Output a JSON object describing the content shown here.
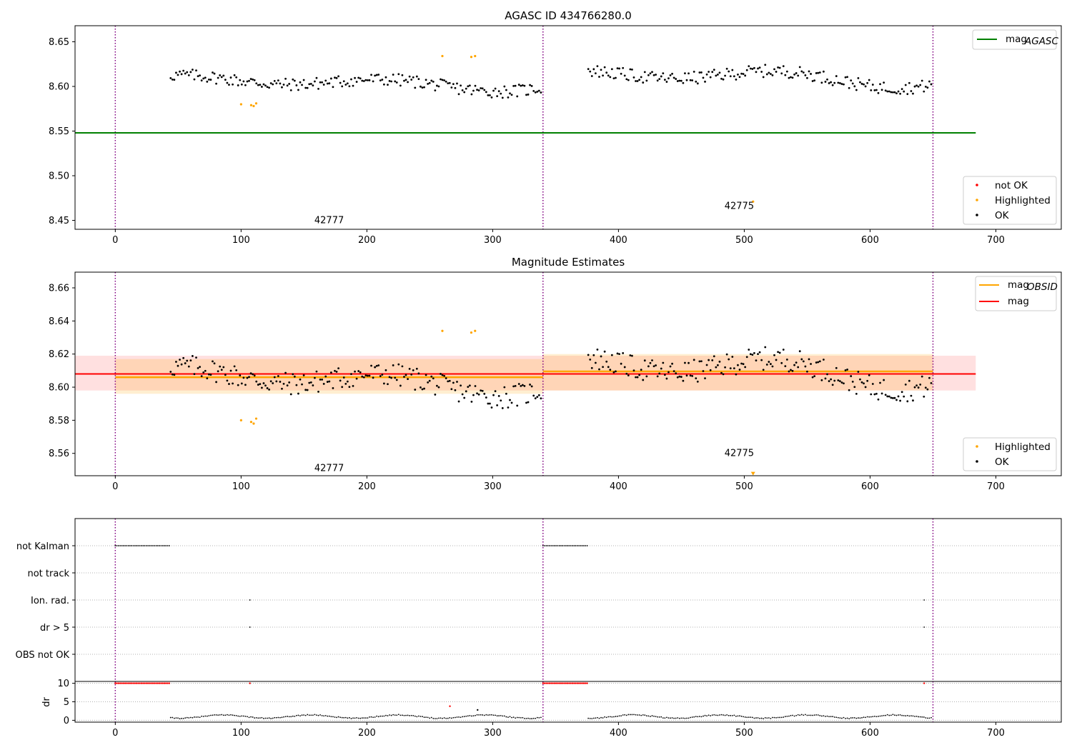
{
  "chart_data": [
    {
      "type": "scatter",
      "title": "AGASC ID 434766280.0",
      "xlim": [
        -32,
        752
      ],
      "ylim": [
        8.44,
        8.668
      ],
      "x_ticks": [
        0,
        100,
        200,
        300,
        400,
        500,
        600,
        700
      ],
      "y_ticks": [
        8.45,
        8.5,
        8.55,
        8.6,
        8.65
      ],
      "y_tick_labels": [
        "8.45",
        "8.50",
        "8.55",
        "8.60",
        "8.65"
      ],
      "obs_boundaries": [
        0,
        340,
        650
      ],
      "obs_labels": [
        {
          "text": "42777",
          "x": 170,
          "y": 8.45
        },
        {
          "text": "42775",
          "x": 496,
          "y": 8.466
        }
      ],
      "reference_line": {
        "name": "mag_AGASC",
        "y": 8.548,
        "x_range": [
          -32,
          684
        ],
        "color": "#008000"
      },
      "segments": [
        {
          "x_start": 44,
          "x_end": 339,
          "base": 8.604,
          "amp": 0.01,
          "noise": 0.007
        },
        {
          "x_start": 376,
          "x_end": 650,
          "base": 8.61,
          "amp": 0.012,
          "noise": 0.007
        }
      ],
      "highlighted_points": [
        {
          "x": 100,
          "y": 8.58
        },
        {
          "x": 108,
          "y": 8.579
        },
        {
          "x": 110,
          "y": 8.578
        },
        {
          "x": 112,
          "y": 8.581
        },
        {
          "x": 260,
          "y": 8.634
        },
        {
          "x": 283,
          "y": 8.633
        },
        {
          "x": 286,
          "y": 8.634
        },
        {
          "x": 507,
          "y": 8.471
        }
      ],
      "legend_lines": [
        {
          "label": "mag",
          "sub": "AGASC",
          "color": "#008000"
        }
      ],
      "legend_markers": [
        {
          "label": "not OK",
          "color": "#ff0000"
        },
        {
          "label": "Highlighted",
          "color": "#ffa500"
        },
        {
          "label": "OK",
          "color": "#000000"
        }
      ]
    },
    {
      "type": "scatter",
      "title": "Magnitude Estimates",
      "xlim": [
        -32,
        752
      ],
      "ylim": [
        8.5465,
        8.6695
      ],
      "x_ticks": [
        0,
        100,
        200,
        300,
        400,
        500,
        600,
        700
      ],
      "y_ticks": [
        8.56,
        8.58,
        8.6,
        8.62,
        8.64,
        8.66
      ],
      "y_tick_labels": [
        "8.56",
        "8.58",
        "8.60",
        "8.62",
        "8.64",
        "8.66"
      ],
      "obs_boundaries": [
        0,
        340,
        650
      ],
      "obs_labels": [
        {
          "text": "42777",
          "x": 170,
          "y": 8.551
        },
        {
          "text": "42775",
          "x": 496,
          "y": 8.56
        }
      ],
      "mag_line": {
        "name": "mag",
        "y": 8.608,
        "band": [
          8.598,
          8.619
        ],
        "x_range": [
          -32,
          684
        ],
        "color": "#ff0000"
      },
      "obsid_lines": [
        {
          "x_range": [
            0,
            340
          ],
          "y": 8.606,
          "band": [
            8.596,
            8.617
          ]
        },
        {
          "x_range": [
            340,
            650
          ],
          "y": 8.6095,
          "band": [
            8.598,
            8.62
          ]
        }
      ],
      "highlighted_points": [
        {
          "x": 100,
          "y": 8.58
        },
        {
          "x": 108,
          "y": 8.579
        },
        {
          "x": 110,
          "y": 8.578
        },
        {
          "x": 112,
          "y": 8.581
        },
        {
          "x": 260,
          "y": 8.634
        },
        {
          "x": 283,
          "y": 8.633
        },
        {
          "x": 286,
          "y": 8.634
        }
      ],
      "offscale_marker": {
        "x": 507,
        "y": 8.5475
      },
      "legend_lines": [
        {
          "label": "mag",
          "sub": "OBSID",
          "color": "#ffa500"
        },
        {
          "label": "mag",
          "sub": "",
          "color": "#ff0000"
        }
      ],
      "legend_markers": [
        {
          "label": "Highlighted",
          "color": "#ffa500"
        },
        {
          "label": "OK",
          "color": "#000000"
        }
      ]
    },
    {
      "type": "scatter",
      "title": "",
      "xlim": [
        -32,
        752
      ],
      "flag_rows": [
        "not Kalman",
        "not track",
        "Ion. rad.",
        "dr > 5",
        "OBS not OK"
      ],
      "flag_points": [
        {
          "row": "not Kalman",
          "x_ranges": [
            [
              0,
              43
            ],
            [
              340,
              376
            ]
          ]
        },
        {
          "row": "Ion. rad.",
          "x": [
            107,
            643
          ]
        },
        {
          "row": "dr > 5",
          "x": [
            107,
            643
          ]
        }
      ],
      "obs_boundaries": [
        0,
        340,
        650
      ]
    },
    {
      "type": "scatter",
      "title": "",
      "ylabel": "dr",
      "xlim": [
        -32,
        752
      ],
      "ylim": [
        -0.5,
        10.5
      ],
      "x_ticks": [
        0,
        100,
        200,
        300,
        400,
        500,
        600,
        700
      ],
      "y_ticks": [
        0,
        5,
        10
      ],
      "y_tick_labels": [
        "0",
        "5",
        "10"
      ],
      "clipped_ranges": [
        [
          0,
          43
        ],
        [
          340,
          376
        ]
      ],
      "clipped_points_x": [
        107,
        643
      ],
      "outlier_points": [
        {
          "x": 266,
          "y": 3.8
        },
        {
          "x": 288,
          "y": 2.8
        }
      ],
      "obs_boundaries": [
        0,
        340,
        650
      ]
    }
  ]
}
